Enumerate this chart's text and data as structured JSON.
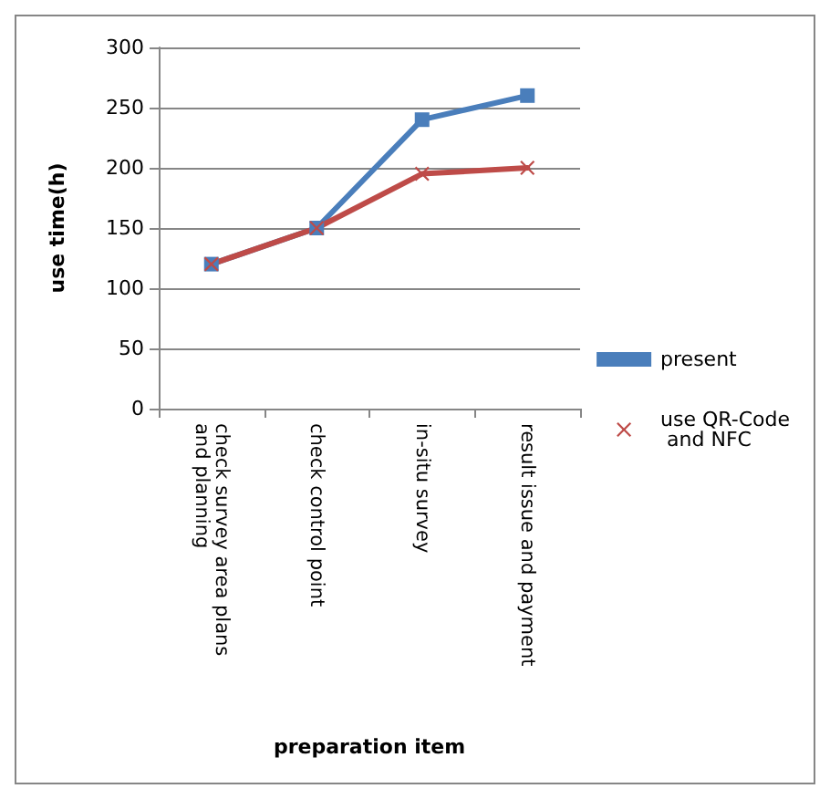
{
  "chart_data": {
    "type": "line",
    "xlabel": "preparation item",
    "ylabel": "use time(h)",
    "categories": [
      "check survey area plans and planning",
      "check control point",
      "in-situ survey",
      "result issue and payment"
    ],
    "series": [
      {
        "name": "present",
        "color": "#4a7ebb",
        "marker": "square",
        "values": [
          120,
          150,
          240,
          260
        ]
      },
      {
        "name": "use QR-Code and NFC",
        "color": "#be4b48",
        "marker": "cross",
        "values": [
          120,
          150,
          195,
          200
        ]
      }
    ],
    "ylim": [
      0,
      300
    ],
    "yticks": [
      0,
      50,
      100,
      150,
      200,
      250,
      300
    ],
    "grid": "y",
    "legend": "right",
    "line_style": "solid"
  }
}
